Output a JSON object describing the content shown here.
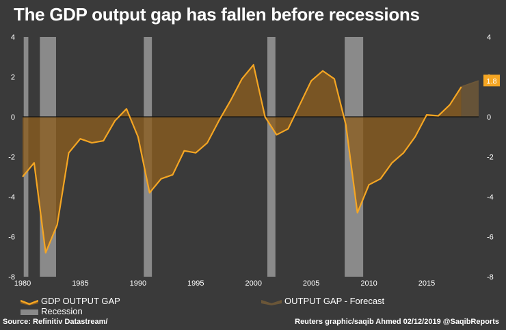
{
  "title": "The GDP output gap has fallen before recessions",
  "source": "Source: Refinitiv Datastream/",
  "credit": "Reuters graphic/saqib Ahmed 02/12/2019 @SaqibReports",
  "legend": {
    "gdp": "GDP OUTPUT GAP",
    "recession": "Recession",
    "forecast": "OUTPUT GAP - Forecast"
  },
  "colors": {
    "background": "#3a3a3a",
    "line": "#f5a623",
    "fill": "#8c5d1f",
    "forecast_fill": "#6b5638",
    "recession": "#8a8a8a",
    "zero_line": "#111111",
    "badge": "#f5a623"
  },
  "chart_data": {
    "type": "area",
    "xlim": [
      1980,
      2019.5
    ],
    "ylim": [
      -8,
      4
    ],
    "x_ticks": [
      1980,
      1985,
      1990,
      1995,
      2000,
      2005,
      2010,
      2015
    ],
    "y_ticks": [
      -8,
      -6,
      -4,
      -2,
      0,
      2,
      4
    ],
    "series": [
      {
        "name": "GDP OUTPUT GAP",
        "x": [
          1980,
          1981,
          1982,
          1983,
          1984,
          1985,
          1986,
          1987,
          1988,
          1989,
          1990,
          1991,
          1992,
          1993,
          1994,
          1995,
          1996,
          1997,
          1998,
          1999,
          2000,
          2001,
          2002,
          2003,
          2004,
          2005,
          2006,
          2007,
          2008,
          2009,
          2010,
          2011,
          2012,
          2013,
          2014,
          2015,
          2016,
          2017,
          2018
        ],
        "values": [
          -3.0,
          -2.3,
          -6.8,
          -5.4,
          -1.8,
          -1.1,
          -1.3,
          -1.2,
          -0.2,
          0.4,
          -1.0,
          -3.8,
          -3.1,
          -2.9,
          -1.7,
          -1.8,
          -1.3,
          -0.2,
          0.8,
          1.9,
          2.6,
          0.0,
          -0.9,
          -0.6,
          0.6,
          1.8,
          2.3,
          1.9,
          -0.4,
          -4.8,
          -3.4,
          -3.1,
          -2.3,
          -1.8,
          -1.0,
          0.1,
          0.05,
          0.6,
          1.5
        ]
      },
      {
        "name": "OUTPUT GAP - Forecast",
        "x": [
          2018,
          2019.5
        ],
        "values": [
          1.5,
          1.8
        ]
      }
    ],
    "recessions": [
      [
        1980.1,
        1980.5
      ],
      [
        1981.5,
        1982.9
      ],
      [
        1990.5,
        1991.2
      ],
      [
        2001.2,
        2001.9
      ],
      [
        2007.9,
        2009.5
      ]
    ],
    "annotation": "1.8"
  }
}
